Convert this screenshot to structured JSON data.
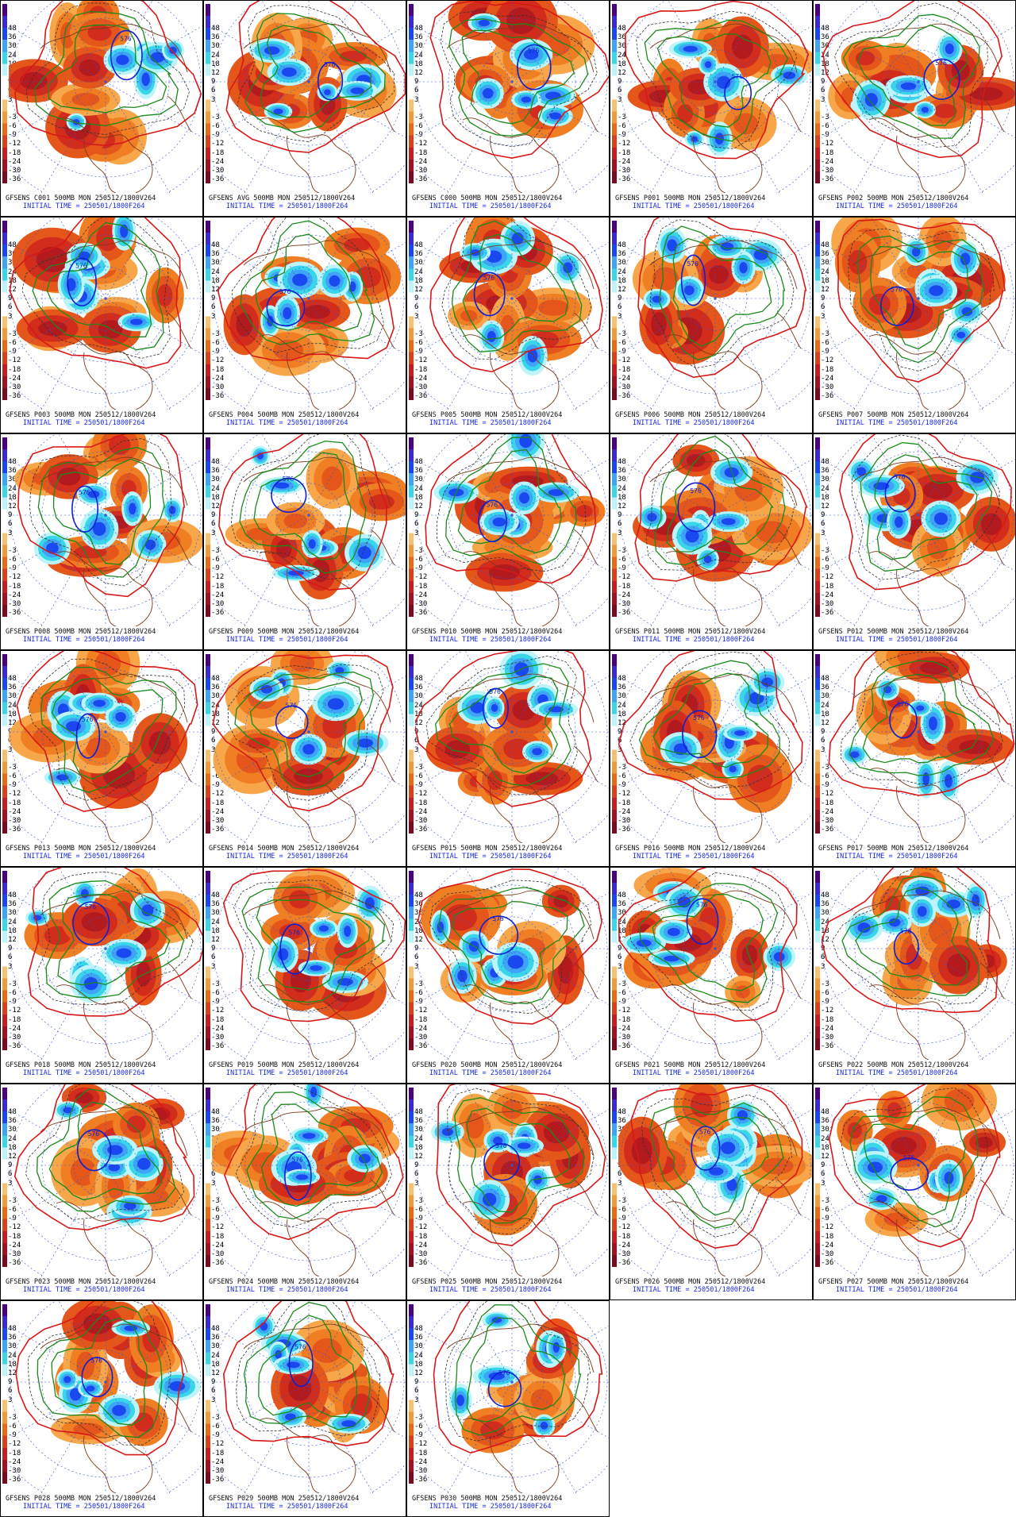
{
  "colorbar": {
    "labels": [
      "48",
      "36",
      "30",
      "24",
      "18",
      "12",
      "9",
      "6",
      "3",
      "",
      "-3",
      "-6",
      "-9",
      "-12",
      "-18",
      "-24",
      "-30",
      "-36"
    ],
    "colors": [
      "#4b0082",
      "#3a2bd0",
      "#1947f0",
      "#3fa3f7",
      "#38d6e8",
      "#bdf4f9",
      "#ffffff",
      "#ffffff",
      "#f7c070",
      "#f39a38",
      "#e86a14",
      "#d8421a",
      "#c02020",
      "#a01222",
      "#7a0a1e"
    ]
  },
  "init_text": "INITIAL TIME = 250501/1800F264",
  "contour_label": "576",
  "panels": [
    {
      "member": "C001",
      "title": "GFSENS C001 500MB MON 250512/1800V264"
    },
    {
      "member": "AVG",
      "title": "GFSENS AVG 500MB MON 250512/1800V264"
    },
    {
      "member": "C000",
      "title": "GFSENS C000 500MB MON 250512/1800V264"
    },
    {
      "member": "P001",
      "title": "GFSENS P001 500MB MON 250512/1800V264"
    },
    {
      "member": "P002",
      "title": "GFSENS P002 500MB MON 250512/1800V264"
    },
    {
      "member": "P003",
      "title": "GFSENS P003 500MB MON 250512/1800V264"
    },
    {
      "member": "P004",
      "title": "GFSENS P004 500MB MON 250512/1800V264"
    },
    {
      "member": "P005",
      "title": "GFSENS P005 500MB MON 250512/1800V264"
    },
    {
      "member": "P006",
      "title": "GFSENS P006 500MB MON 250512/1800V264"
    },
    {
      "member": "P007",
      "title": "GFSENS P007 500MB MON 250512/1800V264"
    },
    {
      "member": "P008",
      "title": "GFSENS P008 500MB MON 250512/1800V264"
    },
    {
      "member": "P009",
      "title": "GFSENS P009 500MB MON 250512/1800V264"
    },
    {
      "member": "P010",
      "title": "GFSENS P010 500MB MON 250512/1800V264"
    },
    {
      "member": "P011",
      "title": "GFSENS P011 500MB MON 250512/1800V264"
    },
    {
      "member": "P012",
      "title": "GFSENS P012 500MB MON 250512/1800V264"
    },
    {
      "member": "P013",
      "title": "GFSENS P013 500MB MON 250512/1800V264"
    },
    {
      "member": "P014",
      "title": "GFSENS P014 500MB MON 250512/1800V264"
    },
    {
      "member": "P015",
      "title": "GFSENS P015 500MB MON 250512/1800V264"
    },
    {
      "member": "P016",
      "title": "GFSENS P016 500MB MON 250512/1800V264"
    },
    {
      "member": "P017",
      "title": "GFSENS P017 500MB MON 250512/1800V264"
    },
    {
      "member": "P018",
      "title": "GFSENS P018 500MB MON 250512/1800V264"
    },
    {
      "member": "P019",
      "title": "GFSENS P019 500MB MON 250512/1800V264"
    },
    {
      "member": "P020",
      "title": "GFSENS P020 500MB MON 250512/1800V264"
    },
    {
      "member": "P021",
      "title": "GFSENS P021 500MB MON 250512/1800V264"
    },
    {
      "member": "P022",
      "title": "GFSENS P022 500MB MON 250512/1800V264"
    },
    {
      "member": "P023",
      "title": "GFSENS P023 500MB MON 250512/1800V264"
    },
    {
      "member": "P024",
      "title": "GFSENS P024 500MB MON 250512/1800V264"
    },
    {
      "member": "P025",
      "title": "GFSENS P025 500MB MON 250512/1800V264"
    },
    {
      "member": "P026",
      "title": "GFSENS P026 500MB MON 250512/1800V264"
    },
    {
      "member": "P027",
      "title": "GFSENS P027 500MB MON 250512/1800V264"
    },
    {
      "member": "P028",
      "title": "GFSENS P028 500MB MON 250512/1800V264"
    },
    {
      "member": "P029",
      "title": "GFSENS P029 500MB MON 250512/1800V264"
    },
    {
      "member": "P030",
      "title": "GFSENS P030 500MB MON 250512/1800V264"
    }
  ]
}
